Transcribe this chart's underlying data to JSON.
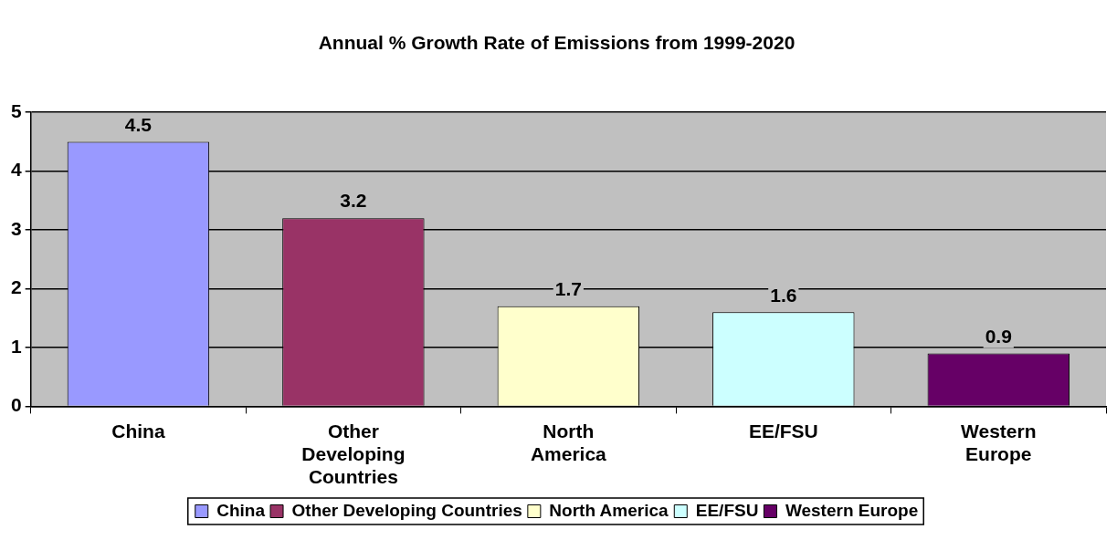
{
  "chart_data": {
    "type": "bar",
    "title": "Annual % Growth Rate of Emissions from 1999-2020",
    "categories": [
      "China",
      "Other Developing Countries",
      "North America",
      "EE/FSU",
      "Western Europe"
    ],
    "series": [
      {
        "name": "China",
        "color": "#9999ff",
        "values": [
          4.5,
          null,
          null,
          null,
          null
        ]
      },
      {
        "name": "Other Developing Countries",
        "color": "#993366",
        "values": [
          null,
          3.2,
          null,
          null,
          null
        ]
      },
      {
        "name": "North America",
        "color": "#ffffcc",
        "values": [
          null,
          null,
          1.7,
          null,
          null
        ]
      },
      {
        "name": "EE/FSU",
        "color": "#ccffff",
        "values": [
          null,
          null,
          null,
          1.6,
          null
        ]
      },
      {
        "name": "Western Europe",
        "color": "#660066",
        "values": [
          null,
          null,
          null,
          null,
          0.9
        ]
      }
    ],
    "ylim": [
      0,
      5
    ],
    "yticks": [
      0,
      1,
      2,
      3,
      4,
      5
    ],
    "grid": "y",
    "legend": "bottom",
    "data_labels": true
  }
}
